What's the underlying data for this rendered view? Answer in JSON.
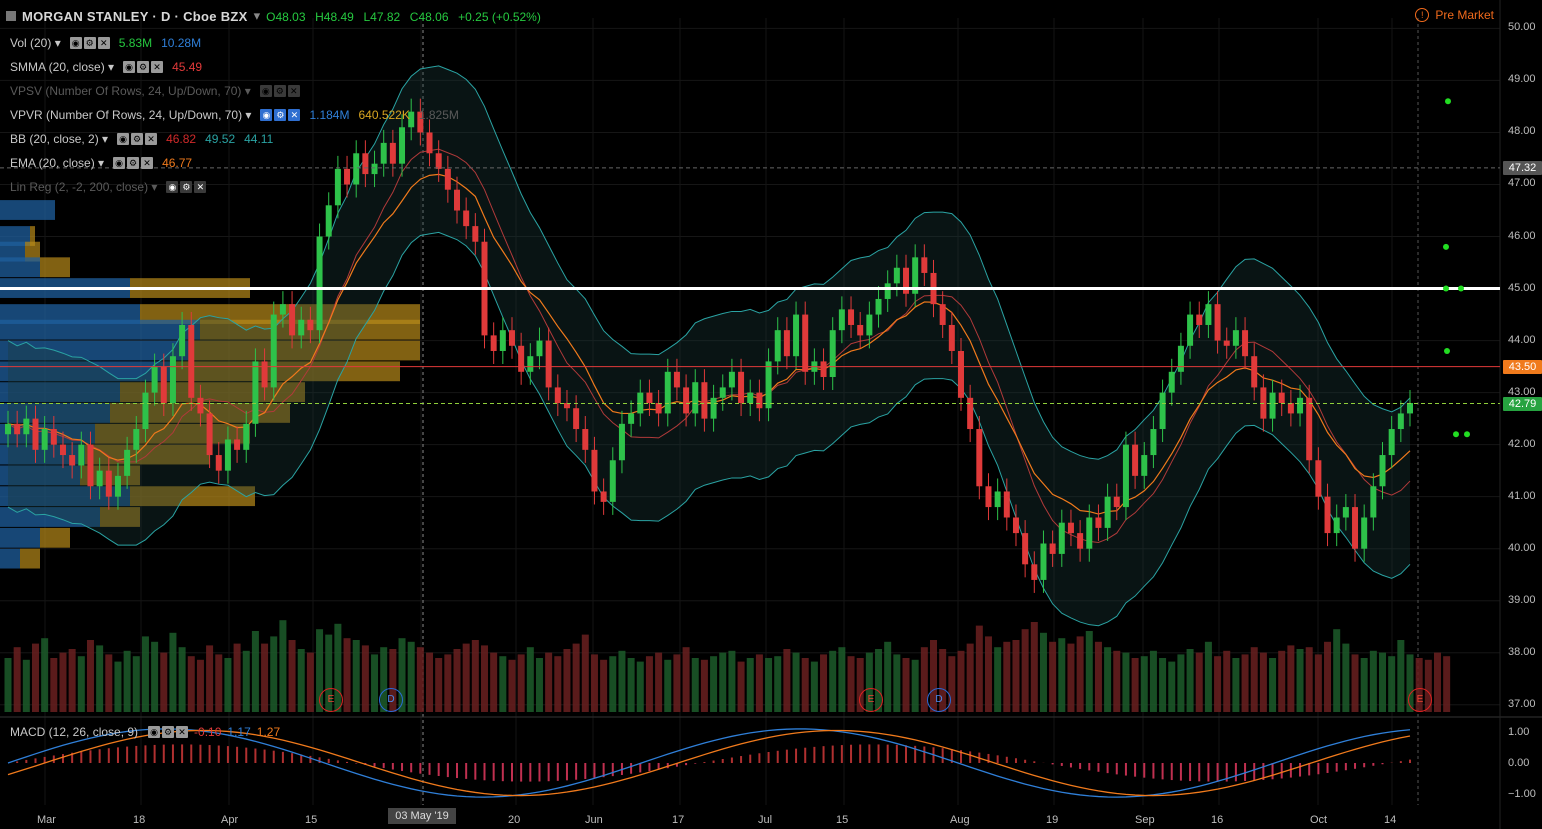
{
  "header": {
    "title": "MORGAN STANLEY · D · Cboe BZX",
    "open": "O48.03",
    "high": "H48.49",
    "low": "L47.82",
    "close": "C48.06",
    "change": "+0.25 (+0.52%)"
  },
  "premarket": "Pre Market",
  "indicators": [
    {
      "name": "Vol (20)",
      "vals": [
        "5.83M",
        "10.28M"
      ],
      "colors": [
        "#26c940",
        "#2f7fd8"
      ],
      "dim": false
    },
    {
      "name": "SMMA (20, close)",
      "vals": [
        "45.49"
      ],
      "colors": [
        "#e23a3a"
      ],
      "dim": false
    },
    {
      "name": "VPSV (Number Of Rows, 24, Up/Down, 70)",
      "vals": [],
      "colors": [],
      "dim": true
    },
    {
      "name": "VPVR (Number Of Rows, 24, Up/Down, 70)",
      "vals": [
        "1.184M",
        "640.522K",
        "1.825M"
      ],
      "colors": [
        "#2f7fd8",
        "#d9a520",
        "#5a5a5a"
      ],
      "dim": false
    },
    {
      "name": "BB (20, close, 2)",
      "vals": [
        "46.82",
        "49.52",
        "44.11"
      ],
      "colors": [
        "#d02a2a",
        "#2aa3a3",
        "#2aa3a3"
      ],
      "dim": false
    },
    {
      "name": "EMA (20, close)",
      "vals": [
        "46.77"
      ],
      "colors": [
        "#f07a1c"
      ],
      "dim": false
    },
    {
      "name": "Lin Reg (2, -2, 200, close)",
      "vals": [],
      "colors": [],
      "dim": true
    }
  ],
  "y_axis": [
    "50.00",
    "49.00",
    "48.00",
    "47.00",
    "46.00",
    "45.00",
    "44.00",
    "43.00",
    "42.00",
    "41.00",
    "40.00",
    "39.00",
    "38.00",
    "37.00"
  ],
  "price_tags": [
    {
      "label": "47.32",
      "value": 47.32,
      "color": "#555555"
    },
    {
      "label": "43.50",
      "value": 43.5,
      "color": "#f07a1c"
    },
    {
      "label": "42.79",
      "value": 42.79,
      "color": "#26a340"
    }
  ],
  "x_axis": [
    "Mar",
    "18",
    "Apr",
    "15",
    "03 May '19",
    "20",
    "Jun",
    "17",
    "Jul",
    "15",
    "Aug",
    "19",
    "Sep",
    "16",
    "Oct",
    "14"
  ],
  "events": [
    {
      "label": "E",
      "kind": "e"
    },
    {
      "label": "D",
      "kind": "d"
    },
    {
      "label": "E",
      "kind": "e"
    },
    {
      "label": "D",
      "kind": "d"
    },
    {
      "label": "E",
      "kind": "e"
    }
  ],
  "macd": {
    "name": "MACD (12, 26, close, 9)",
    "vals": [
      "-0.10",
      "1.17",
      "1.27"
    ],
    "colors": [
      "#e23a3a",
      "#2f7fd8",
      "#f07a1c"
    ],
    "axis": [
      "1.00",
      "0.00",
      "−1.00"
    ]
  },
  "chart_data": {
    "type": "candlestick",
    "ylim": [
      36.9,
      50.2
    ],
    "closes": [
      42.4,
      42.2,
      42.5,
      41.9,
      42.3,
      42.0,
      41.8,
      41.6,
      42.0,
      41.2,
      41.5,
      41.0,
      41.4,
      41.9,
      42.3,
      43.0,
      43.5,
      42.8,
      43.7,
      44.3,
      42.9,
      42.6,
      41.8,
      41.5,
      42.1,
      41.9,
      42.4,
      43.6,
      43.1,
      44.5,
      44.7,
      44.1,
      44.4,
      44.2,
      46.0,
      46.6,
      47.3,
      47.0,
      47.6,
      47.2,
      47.4,
      47.8,
      47.4,
      48.1,
      48.4,
      48.0,
      47.6,
      47.3,
      46.9,
      46.5,
      46.2,
      45.9,
      44.1,
      43.8,
      44.2,
      43.9,
      43.4,
      43.7,
      44.0,
      43.1,
      42.8,
      42.7,
      42.3,
      41.9,
      41.1,
      40.9,
      41.7,
      42.4,
      42.6,
      43.0,
      42.8,
      42.6,
      43.4,
      43.1,
      42.6,
      43.2,
      42.5,
      42.9,
      43.1,
      43.4,
      42.8,
      43.0,
      42.7,
      43.6,
      44.2,
      43.7,
      44.5,
      43.4,
      43.6,
      43.3,
      44.2,
      44.6,
      44.3,
      44.1,
      44.5,
      44.8,
      45.1,
      45.4,
      44.9,
      45.6,
      45.3,
      44.7,
      44.3,
      43.8,
      42.9,
      42.3,
      41.2,
      40.8,
      41.1,
      40.6,
      40.3,
      39.7,
      39.4,
      40.1,
      39.9,
      40.5,
      40.3,
      40.0,
      40.6,
      40.4,
      41.0,
      40.8,
      42.0,
      41.4,
      41.8,
      42.3,
      43.0,
      43.4,
      43.9,
      44.5,
      44.3,
      44.7,
      44.0,
      43.9,
      44.2,
      43.7,
      43.1,
      42.5,
      43.0,
      42.8,
      42.6,
      42.9,
      41.7,
      41.0,
      40.3,
      40.6,
      40.8,
      40.0,
      40.6,
      41.2,
      41.8,
      42.3,
      42.6,
      42.8
    ],
    "volume": [
      3.0,
      3.6,
      2.9,
      3.8,
      4.1,
      3.0,
      3.3,
      3.5,
      3.1,
      4.0,
      3.7,
      3.2,
      2.8,
      3.4,
      3.1,
      4.2,
      3.9,
      3.3,
      4.4,
      3.6,
      3.1,
      2.9,
      3.7,
      3.2,
      3.0,
      3.8,
      3.4,
      4.5,
      3.8,
      4.2,
      5.1,
      4.0,
      3.5,
      3.3,
      4.6,
      4.3,
      4.9,
      4.1,
      4.0,
      3.7,
      3.2,
      3.6,
      3.5,
      4.1,
      3.9,
      3.6,
      3.3,
      3.0,
      3.2,
      3.5,
      3.8,
      4.0,
      3.7,
      3.3,
      3.1,
      2.9,
      3.2,
      3.6,
      3.0,
      3.3,
      3.1,
      3.5,
      3.8,
      4.3,
      3.2,
      2.9,
      3.1,
      3.4,
      3.0,
      2.8,
      3.1,
      3.3,
      2.9,
      3.2,
      3.6,
      3.0,
      2.9,
      3.1,
      3.3,
      3.4,
      2.8,
      3.0,
      3.2,
      3.0,
      3.1,
      3.5,
      3.3,
      3.0,
      2.8,
      3.2,
      3.4,
      3.6,
      3.1,
      3.0,
      3.3,
      3.5,
      3.9,
      3.2,
      3.0,
      2.9,
      3.6,
      4.0,
      3.5,
      3.1,
      3.4,
      3.8,
      4.8,
      4.2,
      3.6,
      3.9,
      4.0,
      4.6,
      5.0,
      4.4,
      3.9,
      4.1,
      3.8,
      4.2,
      4.5,
      3.9,
      3.6,
      3.4,
      3.3,
      3.0,
      3.1,
      3.4,
      3.0,
      2.8,
      3.2,
      3.5,
      3.3,
      3.9,
      3.1,
      3.4,
      3.0,
      3.2,
      3.6,
      3.3,
      3.0,
      3.4,
      3.7,
      3.5,
      3.6,
      3.2,
      3.9,
      4.6,
      3.8,
      3.2,
      3.0,
      3.4,
      3.3,
      3.1,
      4.0,
      3.2,
      3.0,
      2.9,
      3.3,
      3.1
    ],
    "hlines": [
      {
        "value": 45.0,
        "color": "#ffffff"
      },
      {
        "value": 43.5,
        "color": "#e23a3a"
      },
      {
        "value": 47.32,
        "color": "#666666"
      },
      {
        "value": 42.79,
        "color": "#8fcf3a"
      }
    ],
    "macd_series": {
      "macd_last": 1.17,
      "signal_last": 1.27,
      "hist_last": -0.1
    }
  }
}
